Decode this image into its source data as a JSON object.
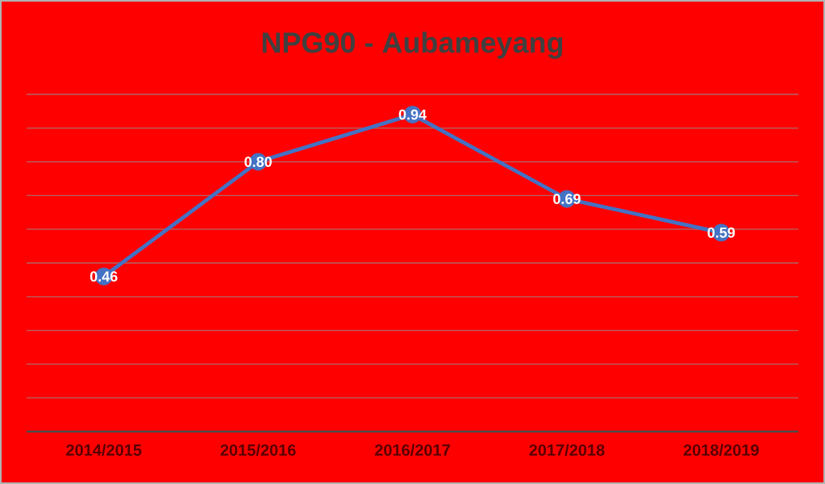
{
  "chart_data": {
    "type": "line",
    "title": "NPG90 - Aubameyang",
    "categories": [
      "2014/2015",
      "2015/2016",
      "2016/2017",
      "2017/2018",
      "2018/2019"
    ],
    "values": [
      0.46,
      0.8,
      0.94,
      0.69,
      0.59
    ],
    "value_labels": [
      "0.46",
      "0.80",
      "0.94",
      "0.69",
      "0.59"
    ],
    "color": "#4472c4",
    "marker": "circle",
    "grid": "y",
    "tick_labels": "x",
    "ylim": [
      0,
      1
    ],
    "yticks": [
      {
        "value": 0,
        "label": null
      },
      {
        "value": 0.1,
        "label": null
      },
      {
        "value": 0.2,
        "label": null
      },
      {
        "value": 0.3,
        "label": null
      },
      {
        "value": 0.4,
        "label": null
      },
      {
        "value": 0.5,
        "label": null
      },
      {
        "value": 0.6,
        "label": null
      },
      {
        "value": 0.7,
        "label": null
      },
      {
        "value": 0.8,
        "label": null
      },
      {
        "value": 0.9,
        "label": null
      },
      {
        "value": 1,
        "label": null
      }
    ]
  }
}
